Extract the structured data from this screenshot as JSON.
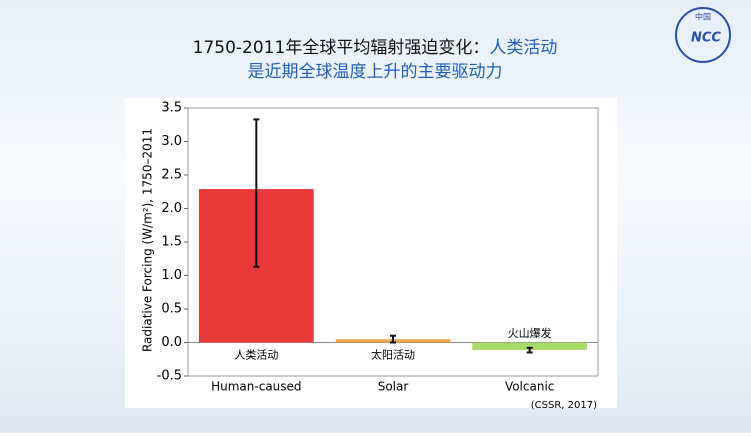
{
  "header": {
    "title_part1": "1750-2011年全球平均辐射强迫变化：",
    "title_part2": "人类活动",
    "title_line2": "是近期全球温度上升的主要驱动力",
    "logo_top": "中国",
    "logo_text": "NCC"
  },
  "chart_data": {
    "type": "bar",
    "y_label": "Radiative Forcing (W/m²), 1750–2011",
    "categories": [
      "Human-caused",
      "Solar",
      "Volcanic"
    ],
    "bar_notes": [
      "人类活动",
      "太阳活动",
      "火山爆发"
    ],
    "values": [
      2.29,
      0.05,
      -0.11
    ],
    "error_low": [
      1.13,
      0.0,
      -0.15
    ],
    "error_high": [
      3.33,
      0.1,
      -0.08
    ],
    "colors": [
      "#e83a3a",
      "#f0a450",
      "#a8da6a"
    ],
    "ylim": [
      -0.5,
      3.5
    ],
    "yticks": [
      -0.5,
      {
        "value": 0,
        "label": "0.0"
      },
      0.5,
      {
        "value": 1,
        "label": "1.0"
      },
      1.5,
      {
        "value": 2,
        "label": "2.0"
      },
      2.5,
      {
        "value": 3,
        "label": "3.0"
      },
      3.5
    ],
    "source": "(CSSR, 2017)"
  }
}
